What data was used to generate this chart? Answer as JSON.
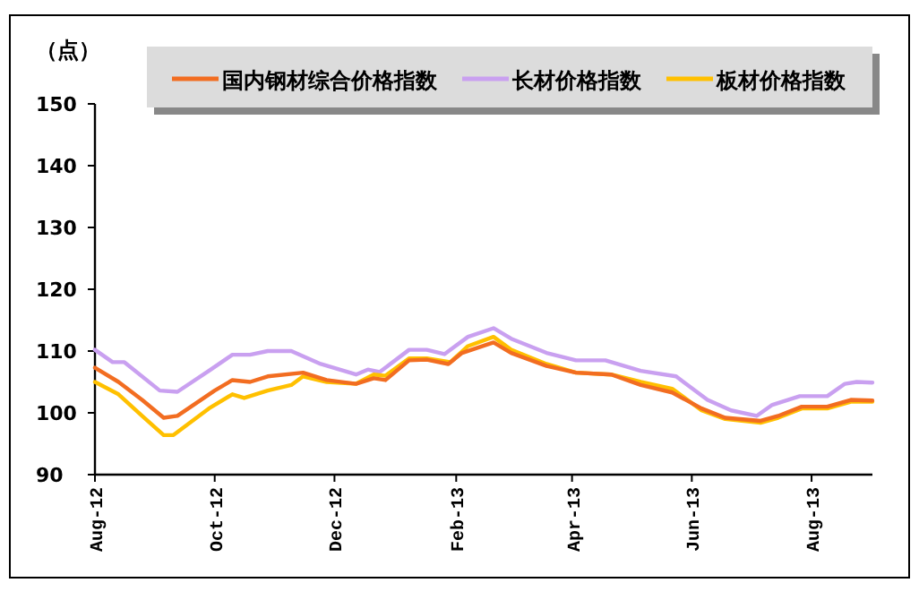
{
  "chart_data": {
    "type": "line",
    "ylabel": "（点）",
    "legend": "top",
    "xlim": [
      "2012-08-01",
      "2013-09-01"
    ],
    "xticks": [
      {
        "value": "2012-08-01",
        "label": "Aug-12"
      },
      {
        "value": "2012-10-01",
        "label": "Oct-12"
      },
      {
        "value": "2012-12-01",
        "label": "Dec-12"
      },
      {
        "value": "2013-02-01",
        "label": "Feb-13"
      },
      {
        "value": "2013-04-01",
        "label": "Apr-13"
      },
      {
        "value": "2013-06-01",
        "label": "Jun-13"
      },
      {
        "value": "2013-08-01",
        "label": "Aug-13"
      }
    ],
    "ylim": [
      90,
      150
    ],
    "yticks": [
      90,
      100,
      110,
      120,
      130,
      140,
      150
    ],
    "grid": false,
    "line_style": "solid",
    "marker": "none",
    "series": [
      {
        "name": "国内钢材综合价格指数",
        "color": "#f26d21",
        "x": [
          "2012-08-01",
          "2012-08-13",
          "2012-08-25",
          "2012-09-05",
          "2012-09-12",
          "2012-10-01",
          "2012-10-10",
          "2012-10-19",
          "2012-10-28",
          "2012-11-15",
          "2012-11-27",
          "2012-12-12",
          "2012-12-21",
          "2012-12-27",
          "2013-01-08",
          "2013-01-17",
          "2013-01-28",
          "2013-02-04",
          "2013-02-20",
          "2013-03-01",
          "2013-03-19",
          "2013-04-03",
          "2013-04-21",
          "2013-05-06",
          "2013-05-22",
          "2013-06-06",
          "2013-06-18",
          "2013-07-06",
          "2013-07-15",
          "2013-07-27",
          "2013-08-09",
          "2013-08-21",
          "2013-09-01"
        ],
        "values": [
          107.3,
          105,
          102.1,
          99.2,
          99.5,
          103.6,
          105.3,
          105,
          105.9,
          106.5,
          105.3,
          104.7,
          105.6,
          105.3,
          108.5,
          108.6,
          107.9,
          109.7,
          111.4,
          109.7,
          107.6,
          106.5,
          106.2,
          104.5,
          103.3,
          100.7,
          99.2,
          98.7,
          99.5,
          101,
          101,
          102.1,
          102
        ]
      },
      {
        "name": "长材价格指数",
        "color": "#c9a0f0",
        "x": [
          "2012-08-01",
          "2012-08-10",
          "2012-08-16",
          "2012-09-03",
          "2012-09-12",
          "2012-09-28",
          "2012-10-10",
          "2012-10-19",
          "2012-10-28",
          "2012-11-09",
          "2012-11-24",
          "2012-12-12",
          "2012-12-18",
          "2012-12-24",
          "2013-01-08",
          "2013-01-17",
          "2013-01-26",
          "2013-02-07",
          "2013-02-20",
          "2013-03-01",
          "2013-03-19",
          "2013-04-03",
          "2013-04-18",
          "2013-05-06",
          "2013-05-24",
          "2013-06-09",
          "2013-06-21",
          "2013-07-04",
          "2013-07-12",
          "2013-07-26",
          "2013-08-09",
          "2013-08-18",
          "2013-08-24",
          "2013-09-01"
        ],
        "values": [
          110.2,
          108.2,
          108.2,
          103.6,
          103.4,
          106.8,
          109.4,
          109.4,
          110,
          110,
          107.9,
          106.2,
          107,
          106.6,
          110.2,
          110.2,
          109.5,
          112.3,
          113.7,
          112,
          109.7,
          108.5,
          108.5,
          106.8,
          105.9,
          102.1,
          100.4,
          99.5,
          101.3,
          102.7,
          102.7,
          104.7,
          105,
          104.9
        ]
      },
      {
        "name": "板材价格指数",
        "color": "#ffc000",
        "x": [
          "2012-08-01",
          "2012-08-13",
          "2012-08-25",
          "2012-09-05",
          "2012-09-10",
          "2012-09-28",
          "2012-10-10",
          "2012-10-16",
          "2012-10-28",
          "2012-11-09",
          "2012-11-15",
          "2012-11-27",
          "2012-12-12",
          "2012-12-21",
          "2012-12-27",
          "2013-01-08",
          "2013-01-17",
          "2013-01-29",
          "2013-02-07",
          "2013-02-20",
          "2013-03-01",
          "2013-03-19",
          "2013-04-03",
          "2013-04-21",
          "2013-05-06",
          "2013-05-22",
          "2013-06-06",
          "2013-06-18",
          "2013-07-06",
          "2013-07-15",
          "2013-07-27",
          "2013-08-09",
          "2013-08-21",
          "2013-09-01"
        ],
        "values": [
          105,
          103,
          99.5,
          96.4,
          96.4,
          100.7,
          103,
          102.4,
          103.6,
          104.5,
          105.9,
          105,
          104.7,
          106.2,
          106,
          108.8,
          108.8,
          108.2,
          110.8,
          112.3,
          110.2,
          107.9,
          106.5,
          106.2,
          105,
          103.9,
          100.4,
          99,
          98.4,
          99.2,
          100.7,
          100.7,
          101.8,
          101.8
        ]
      }
    ]
  }
}
